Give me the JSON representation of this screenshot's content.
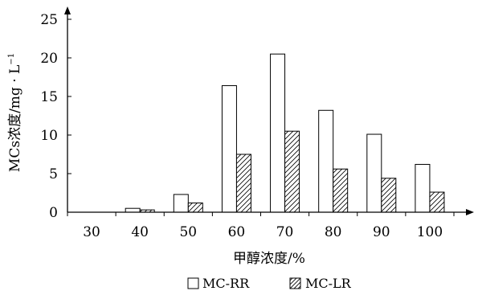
{
  "chart_data": {
    "type": "bar",
    "title": "",
    "xlabel": "甲醇浓度/%",
    "ylabel_main": "MCs浓度/mg · L",
    "ylabel_sup": "−1",
    "categories": [
      "30",
      "40",
      "50",
      "60",
      "70",
      "80",
      "90",
      "100"
    ],
    "series": [
      {
        "name": "MC-RR",
        "pattern": "empty",
        "values": [
          0,
          0.5,
          2.3,
          16.4,
          20.5,
          13.2,
          10.1,
          6.2
        ]
      },
      {
        "name": "MC-LR",
        "pattern": "hatched",
        "values": [
          0,
          0.3,
          1.2,
          7.5,
          10.5,
          5.6,
          4.4,
          2.6
        ]
      }
    ],
    "ylim": [
      0,
      25
    ],
    "yticks": [
      "0",
      "5",
      "10",
      "15",
      "20",
      "25"
    ],
    "grid": false,
    "legend_position": "bottom-center",
    "colors": {
      "bar_stroke": "#000000",
      "bar_fill": "#ffffff",
      "hatch": "#000000"
    }
  }
}
